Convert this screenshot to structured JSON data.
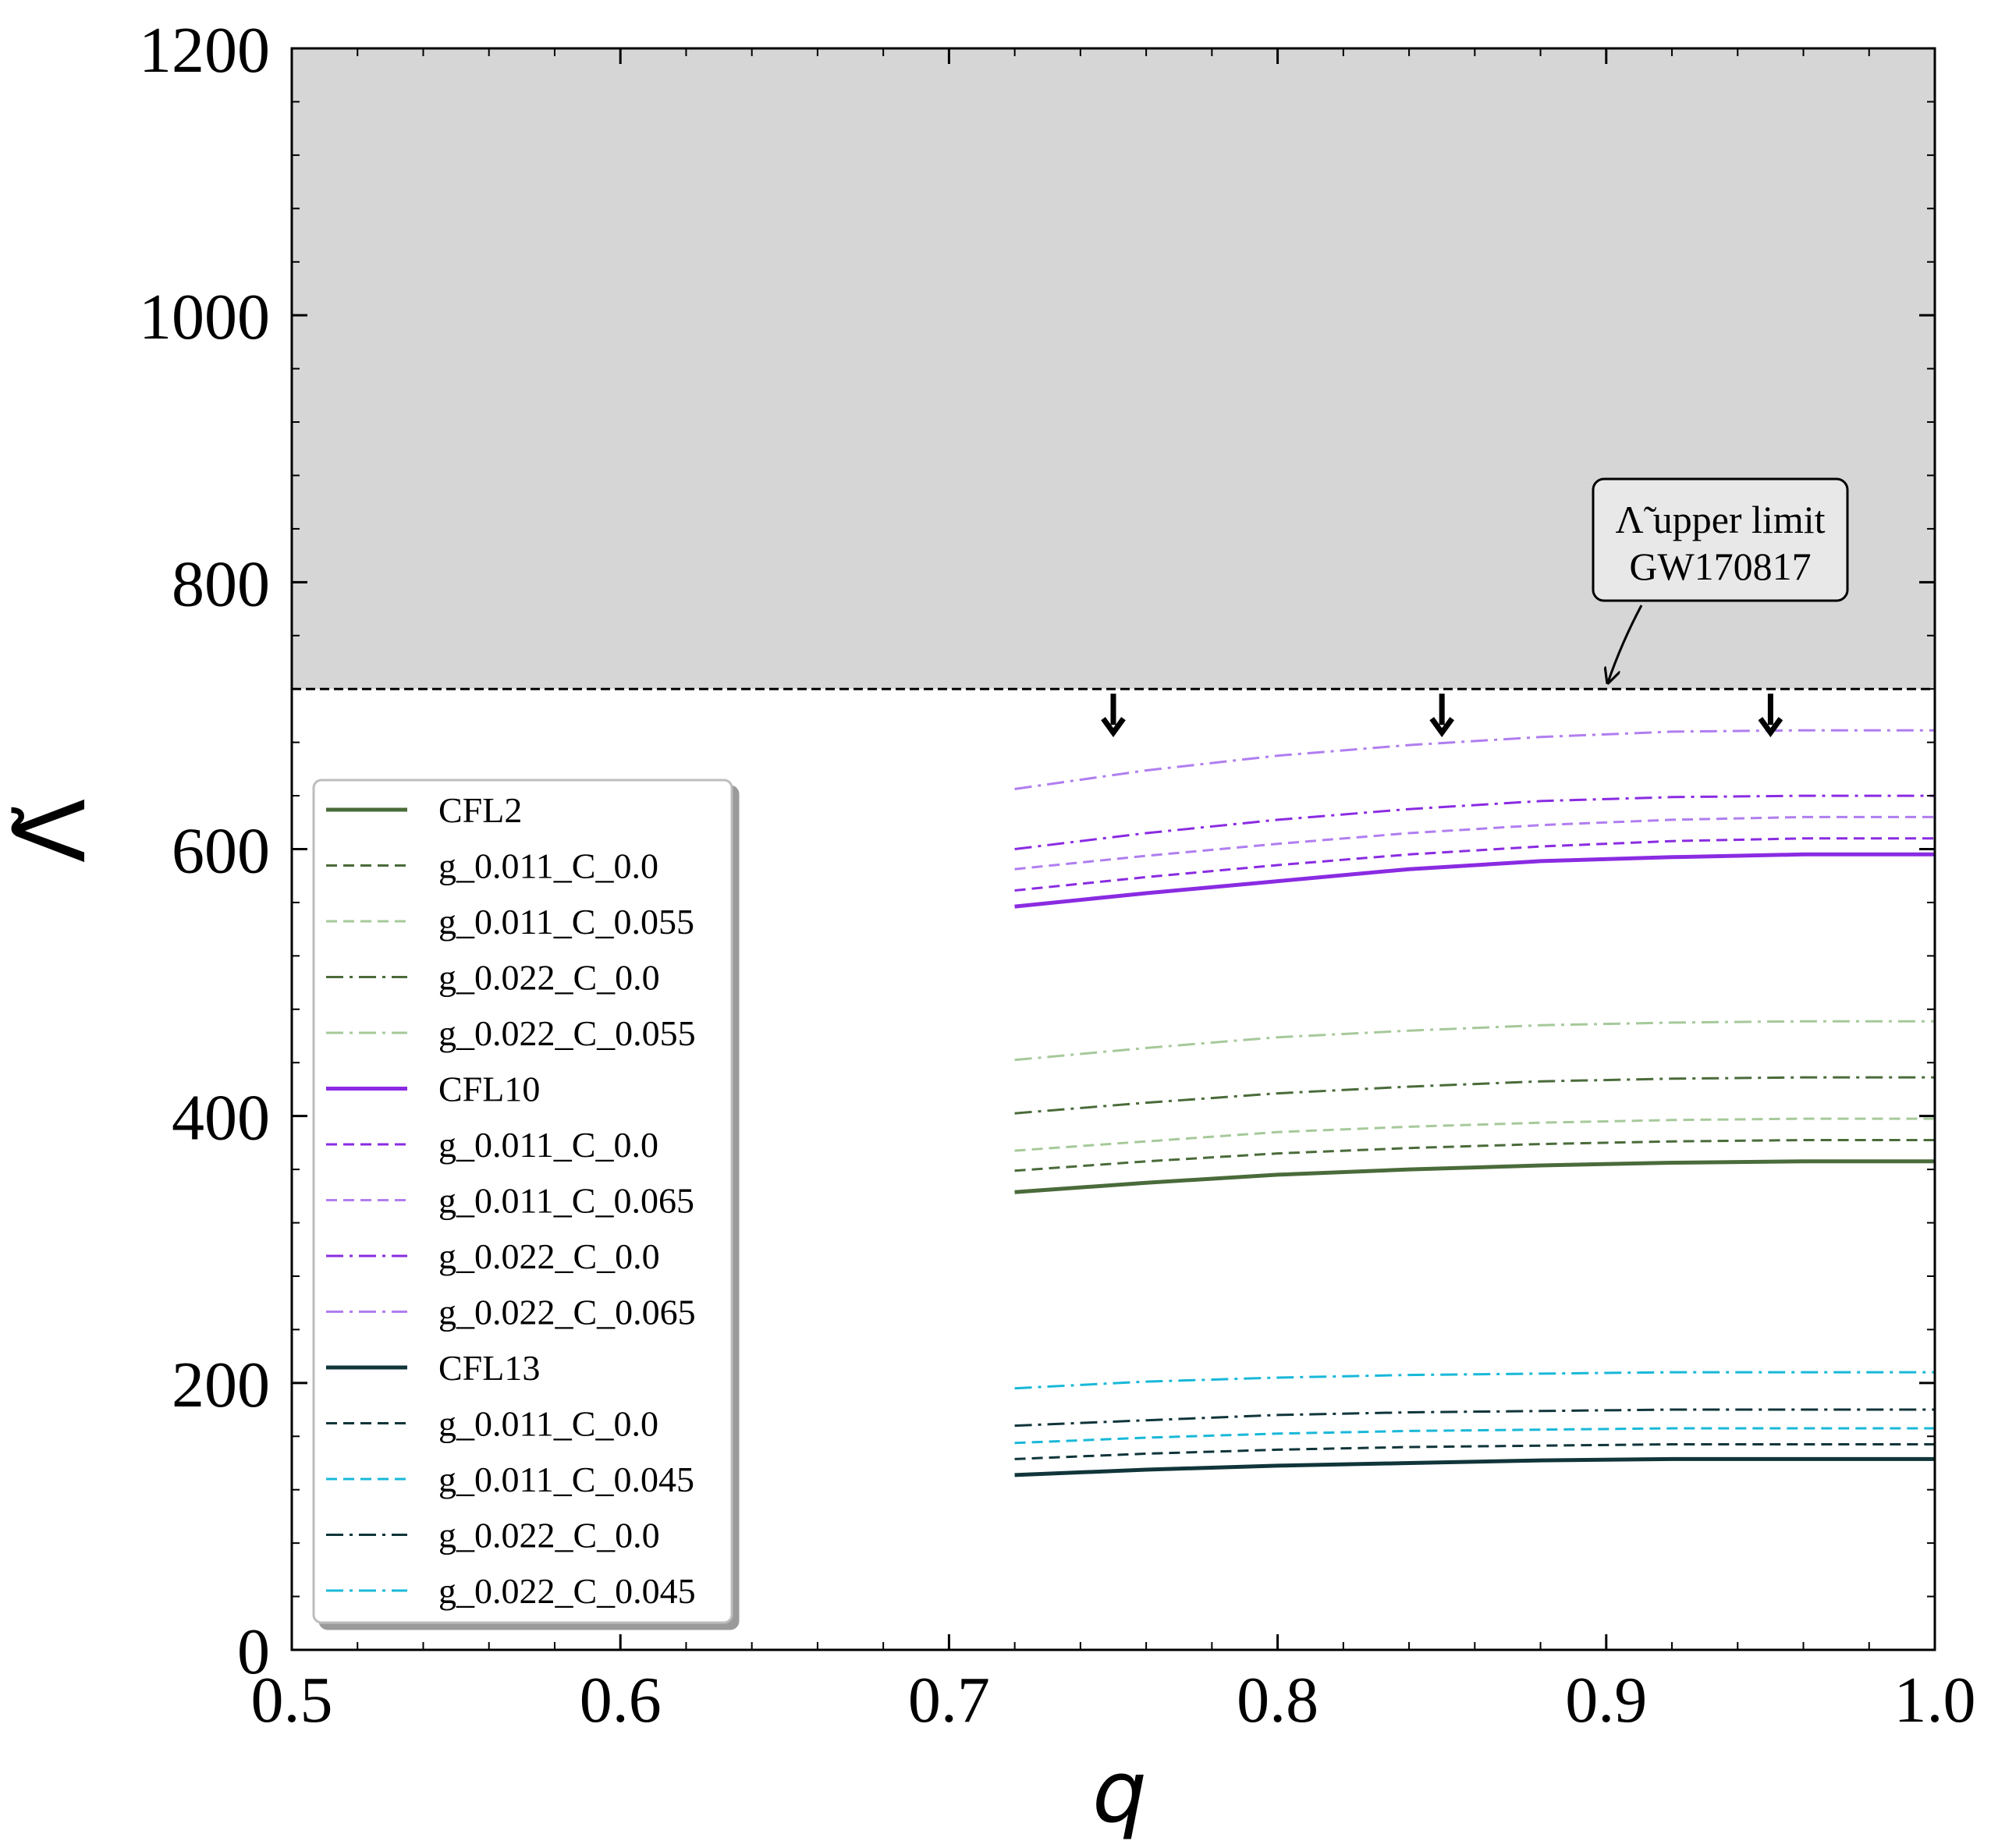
{
  "chart_data": {
    "type": "line",
    "xlabel": "q",
    "ylabel": "Λ̃",
    "xlim": [
      0.5,
      1.0
    ],
    "ylim": [
      0,
      1200
    ],
    "xticks": [
      "0.5",
      "0.6",
      "0.7",
      "0.8",
      "0.9",
      "1.0"
    ],
    "yticks": [
      "0",
      "200",
      "400",
      "600",
      "800",
      "1000",
      "1200"
    ],
    "grid": false,
    "legend_placement": "lower-left",
    "excluded_region": {
      "from": 720,
      "to": 1200,
      "color": "#d6d6d6"
    },
    "limit_line": {
      "y": 720,
      "style": "dashed",
      "color": "#000000"
    },
    "annotation": {
      "line1_symbol": "Λ̃",
      "line1_text": "upper limit",
      "line2": "GW170817",
      "points_to": [
        0.9,
        720
      ]
    },
    "markers": {
      "type": "down-arrow",
      "x": [
        0.75,
        0.85,
        0.95
      ]
    },
    "x": [
      0.72,
      0.76,
      0.8,
      0.84,
      0.88,
      0.92,
      0.96,
      1.0
    ],
    "series": [
      {
        "name": "CFL2",
        "color": "#4a6b3a",
        "style": "solid",
        "width": 5,
        "values": [
          343,
          350,
          356,
          360,
          363,
          365,
          366,
          366
        ]
      },
      {
        "name": "g_0.011_C_0.0",
        "color": "#4a6b3a",
        "style": "dashed",
        "width": 3,
        "values": [
          359,
          366,
          372,
          376,
          379,
          381,
          382,
          382
        ]
      },
      {
        "name": "g_0.011_C_0.055",
        "color": "#a6c99a",
        "style": "dashed",
        "width": 3,
        "values": [
          374,
          381,
          388,
          392,
          395,
          397,
          398,
          398
        ]
      },
      {
        "name": "g_0.022_C_0.0",
        "color": "#4a6b3a",
        "style": "dashdot",
        "width": 3,
        "values": [
          402,
          410,
          417,
          422,
          426,
          428,
          429,
          429
        ]
      },
      {
        "name": "g_0.022_C_0.055",
        "color": "#a6c99a",
        "style": "dashdot",
        "width": 3,
        "values": [
          442,
          451,
          459,
          464,
          468,
          470,
          471,
          471
        ]
      },
      {
        "name": "CFL10",
        "color": "#8a2be2",
        "style": "solid",
        "width": 5,
        "values": [
          557,
          567,
          576,
          585,
          591,
          594,
          596,
          596
        ]
      },
      {
        "name": "g_0.011_C_0.0",
        "color": "#8a2be2",
        "style": "dashed",
        "width": 3,
        "values": [
          569,
          579,
          588,
          596,
          602,
          606,
          608,
          608
        ]
      },
      {
        "name": "g_0.011_C_0.065",
        "color": "#b07ef0",
        "style": "dashed",
        "width": 3,
        "values": [
          585,
          595,
          604,
          612,
          618,
          622,
          624,
          624
        ]
      },
      {
        "name": "g_0.022_C_0.0",
        "color": "#8a2be2",
        "style": "dashdot",
        "width": 3,
        "values": [
          600,
          612,
          622,
          630,
          636,
          639,
          640,
          640
        ]
      },
      {
        "name": "g_0.022_C_0.065",
        "color": "#b07ef0",
        "style": "dashdot",
        "width": 3,
        "values": [
          645,
          659,
          670,
          678,
          684,
          688,
          689,
          689
        ]
      },
      {
        "name": "CFL13",
        "color": "#10353a",
        "style": "solid",
        "width": 5,
        "values": [
          131,
          135,
          138,
          140,
          142,
          143,
          143,
          143
        ]
      },
      {
        "name": "g_0.011_C_0.0",
        "color": "#10353a",
        "style": "dashed",
        "width": 3,
        "values": [
          143,
          147,
          150,
          152,
          153,
          154,
          154,
          154
        ]
      },
      {
        "name": "g_0.011_C_0.045",
        "color": "#18b8d8",
        "style": "dashed",
        "width": 3,
        "values": [
          155,
          159,
          162,
          164,
          165,
          166,
          166,
          166
        ]
      },
      {
        "name": "g_0.022_C_0.0",
        "color": "#10353a",
        "style": "dashdot",
        "width": 3,
        "values": [
          168,
          172,
          176,
          178,
          179,
          180,
          180,
          180
        ]
      },
      {
        "name": "g_0.022_C_0.045",
        "color": "#18b8d8",
        "style": "dashdot",
        "width": 3,
        "values": [
          196,
          201,
          204,
          206,
          207,
          208,
          208,
          208
        ]
      }
    ]
  }
}
